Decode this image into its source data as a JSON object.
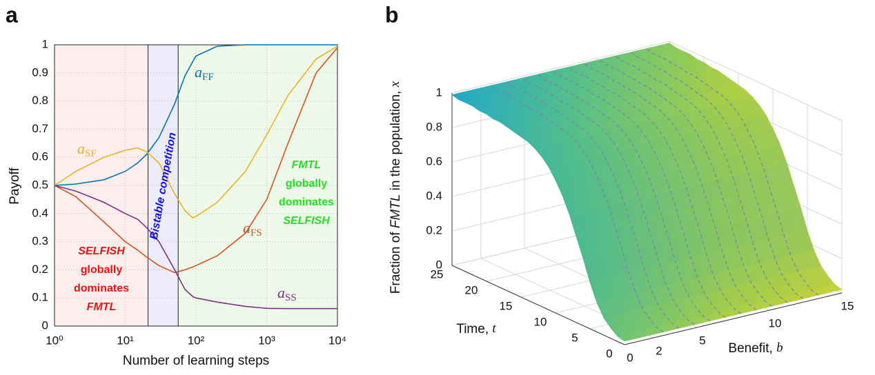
{
  "chart_data": [
    {
      "label": "a",
      "type": "line",
      "xlabel": "Number of learning steps",
      "ylabel": "Payoff",
      "xscale": "log",
      "xlim": [
        1,
        10000
      ],
      "xticks": [
        {
          "value": 1,
          "label": "10⁰"
        },
        {
          "value": 10,
          "label": "10¹"
        },
        {
          "value": 100,
          "label": "10²"
        },
        {
          "value": 1000,
          "label": "10³"
        },
        {
          "value": 10000,
          "label": "10⁴"
        }
      ],
      "ylim": [
        0,
        1
      ],
      "yticks": [
        0,
        0.1,
        0.2,
        0.3,
        0.4,
        0.5,
        0.6,
        0.7,
        0.8,
        0.9,
        1
      ],
      "grid": true,
      "x": [
        1,
        2,
        5,
        10,
        15,
        20,
        30,
        50,
        70,
        90,
        100,
        200,
        500,
        1000,
        2000,
        5000,
        10000
      ],
      "series": [
        {
          "name": "a",
          "subscript": "FF",
          "color": "#0072bd",
          "values": [
            0.5,
            0.505,
            0.52,
            0.55,
            0.58,
            0.61,
            0.67,
            0.79,
            0.89,
            0.94,
            0.96,
            0.995,
            1,
            1,
            1,
            1,
            1
          ]
        },
        {
          "name": "a",
          "subscript": "SF",
          "color": "#edb120",
          "values": [
            0.5,
            0.55,
            0.6,
            0.625,
            0.633,
            0.62,
            0.58,
            0.47,
            0.41,
            0.385,
            0.39,
            0.44,
            0.55,
            0.68,
            0.82,
            0.95,
            0.995
          ]
        },
        {
          "name": "a",
          "subscript": "FS",
          "color": "#d95319",
          "values": [
            0.5,
            0.46,
            0.37,
            0.3,
            0.27,
            0.245,
            0.215,
            0.19,
            0.2,
            0.21,
            0.215,
            0.25,
            0.33,
            0.45,
            0.65,
            0.9,
            0.99
          ]
        },
        {
          "name": "a",
          "subscript": "SS",
          "color": "#7e2f8e",
          "values": [
            0.5,
            0.48,
            0.44,
            0.4,
            0.38,
            0.35,
            0.3,
            0.2,
            0.13,
            0.105,
            0.1,
            0.085,
            0.07,
            0.063,
            0.062,
            0.062,
            0.062
          ]
        }
      ],
      "regions": [
        {
          "from": 1,
          "to": 21,
          "color": "#fdeeee"
        },
        {
          "from": 21,
          "to": 56,
          "color": "#ececfb"
        },
        {
          "from": 56,
          "to": 10000,
          "color": "#eef9ea"
        }
      ],
      "annotations": [
        {
          "lines": [
            "SELFISH",
            "globally",
            "dominates",
            "FMTL"
          ],
          "color": "#ee1111"
        },
        {
          "lines": [
            "Bistable competition"
          ],
          "color": "#1010ee"
        },
        {
          "lines": [
            "FMTL",
            "globally",
            "dominates",
            "SELFISH"
          ],
          "color": "#22e022"
        }
      ]
    },
    {
      "label": "b",
      "type": "surface",
      "xlabel": [
        "Benefit, ",
        "b"
      ],
      "ylabel": [
        "Time, ",
        "t"
      ],
      "zlabel": [
        "Fraction of ",
        "FMTL",
        " in the population, ",
        "x"
      ],
      "xlim": [
        0,
        15
      ],
      "xticks": [
        0,
        2,
        5,
        10,
        15
      ],
      "ylim": [
        0,
        25
      ],
      "yticks": [
        0,
        5,
        10,
        15,
        20,
        25
      ],
      "zlim": [
        0,
        1
      ],
      "zticks": [
        0,
        0.2,
        0.4,
        0.6,
        0.8,
        1
      ],
      "surface": {
        "y": [
          0,
          1,
          2,
          3,
          4,
          5,
          6,
          7,
          8,
          9,
          10,
          11,
          12,
          13,
          14,
          15,
          16,
          17,
          18,
          19,
          20,
          21,
          22,
          23,
          24,
          25
        ],
        "values": [
          0.02,
          0.03,
          0.06,
          0.1,
          0.17,
          0.27,
          0.39,
          0.5,
          0.61,
          0.7,
          0.77,
          0.83,
          0.87,
          0.9,
          0.92,
          0.93,
          0.94,
          0.95,
          0.96,
          0.96,
          0.97,
          0.97,
          0.98,
          0.98,
          0.98,
          0.99
        ]
      }
    }
  ]
}
